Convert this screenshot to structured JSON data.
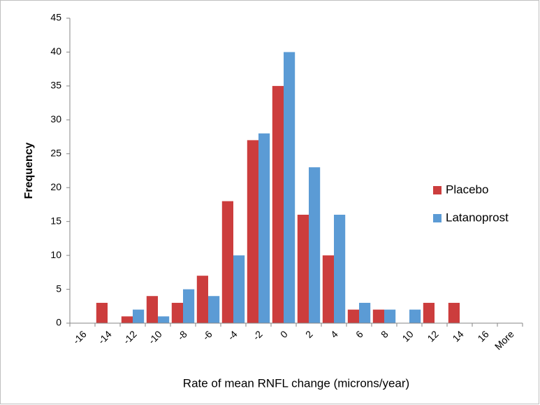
{
  "chart_data": {
    "type": "bar",
    "x_label": "Rate of mean RNFL change (microns/year)",
    "y_label": "Frequency",
    "categories": [
      "-16",
      "-14",
      "-12",
      "-10",
      "-8",
      "-6",
      "-4",
      "-2",
      "0",
      "2",
      "4",
      "6",
      "8",
      "10",
      "12",
      "14",
      "16",
      "More"
    ],
    "series": [
      {
        "name": "Placebo",
        "color": "#cc3d3d",
        "values": [
          0,
          3,
          1,
          4,
          3,
          7,
          18,
          27,
          35,
          16,
          10,
          2,
          2,
          0,
          3,
          3,
          0,
          0
        ]
      },
      {
        "name": "Latanoprost",
        "color": "#5b9bd5",
        "values": [
          0,
          0,
          2,
          1,
          5,
          4,
          10,
          28,
          40,
          23,
          16,
          3,
          2,
          2,
          0,
          0,
          0,
          0
        ]
      }
    ],
    "ylim": [
      0,
      45
    ],
    "yticks": [
      0,
      5,
      10,
      15,
      20,
      25,
      30,
      35,
      40,
      45
    ],
    "grid": false,
    "legend": "right"
  }
}
